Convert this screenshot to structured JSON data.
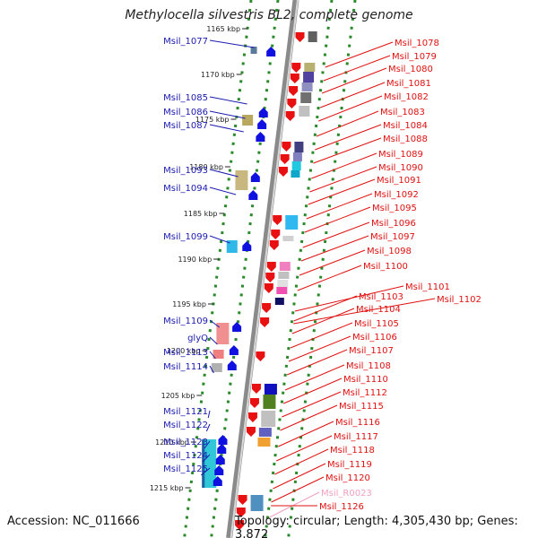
{
  "title": "Methylocella silvestris BL2, complete genome",
  "footer": {
    "accession": "Accession: NC_011666",
    "topology": "Topology: circular; Length: 4,305,430 bp; Genes: 3,872"
  },
  "colors": {
    "forward_strand": "#1010e0",
    "reverse_strand": "#e81010",
    "left_labels": "#1a1ab0",
    "right_labels": "#e01010",
    "rna_label": "#f0a0c0",
    "backbone": "#8a8a8a",
    "ruler_dots": "#2a8a2a"
  },
  "ticks": [
    {
      "label": "1165 kbp"
    },
    {
      "label": "1170 kbp"
    },
    {
      "label": "1175 kbp"
    },
    {
      "label": "1180 kbp"
    },
    {
      "label": "1185 kbp"
    },
    {
      "label": "1190 kbp"
    },
    {
      "label": "1195 kbp"
    },
    {
      "label": "1200 kbp"
    },
    {
      "label": "1205 kbp"
    },
    {
      "label": "1210 kbp"
    },
    {
      "label": "1215 kbp"
    }
  ],
  "left_labels": [
    "Msil_1077",
    "Msil_1085",
    "Msil_1086",
    "Msil_1087",
    "Msil_1093",
    "Msil_1094",
    "Msil_1099",
    "Msil_1109",
    "glyQ",
    "Msil_1113",
    "Msil_1114",
    "Msil_1121",
    "Msil_1122",
    "Msil_1123",
    "Msil_1124",
    "Msil_1125"
  ],
  "right_labels": [
    "Msil_1078",
    "Msil_1079",
    "Msil_1080",
    "Msil_1081",
    "Msil_1082",
    "Msil_1083",
    "Msil_1084",
    "Msil_1088",
    "Msil_1089",
    "Msil_1090",
    "Msil_1091",
    "Msil_1092",
    "Msil_1095",
    "Msil_1096",
    "Msil_1097",
    "Msil_1098",
    "Msil_1100",
    "Msil_1101",
    "Msil_1102",
    "Msil_1103",
    "Msil_1104",
    "Msil_1105",
    "Msil_1106",
    "Msil_1107",
    "Msil_1108",
    "Msil_1110",
    "Msil_1112",
    "Msil_1115",
    "Msil_1116",
    "Msil_1117",
    "Msil_1118",
    "Msil_1119",
    "Msil_1120",
    "Msil_R0023",
    "Msil_1126"
  ]
}
